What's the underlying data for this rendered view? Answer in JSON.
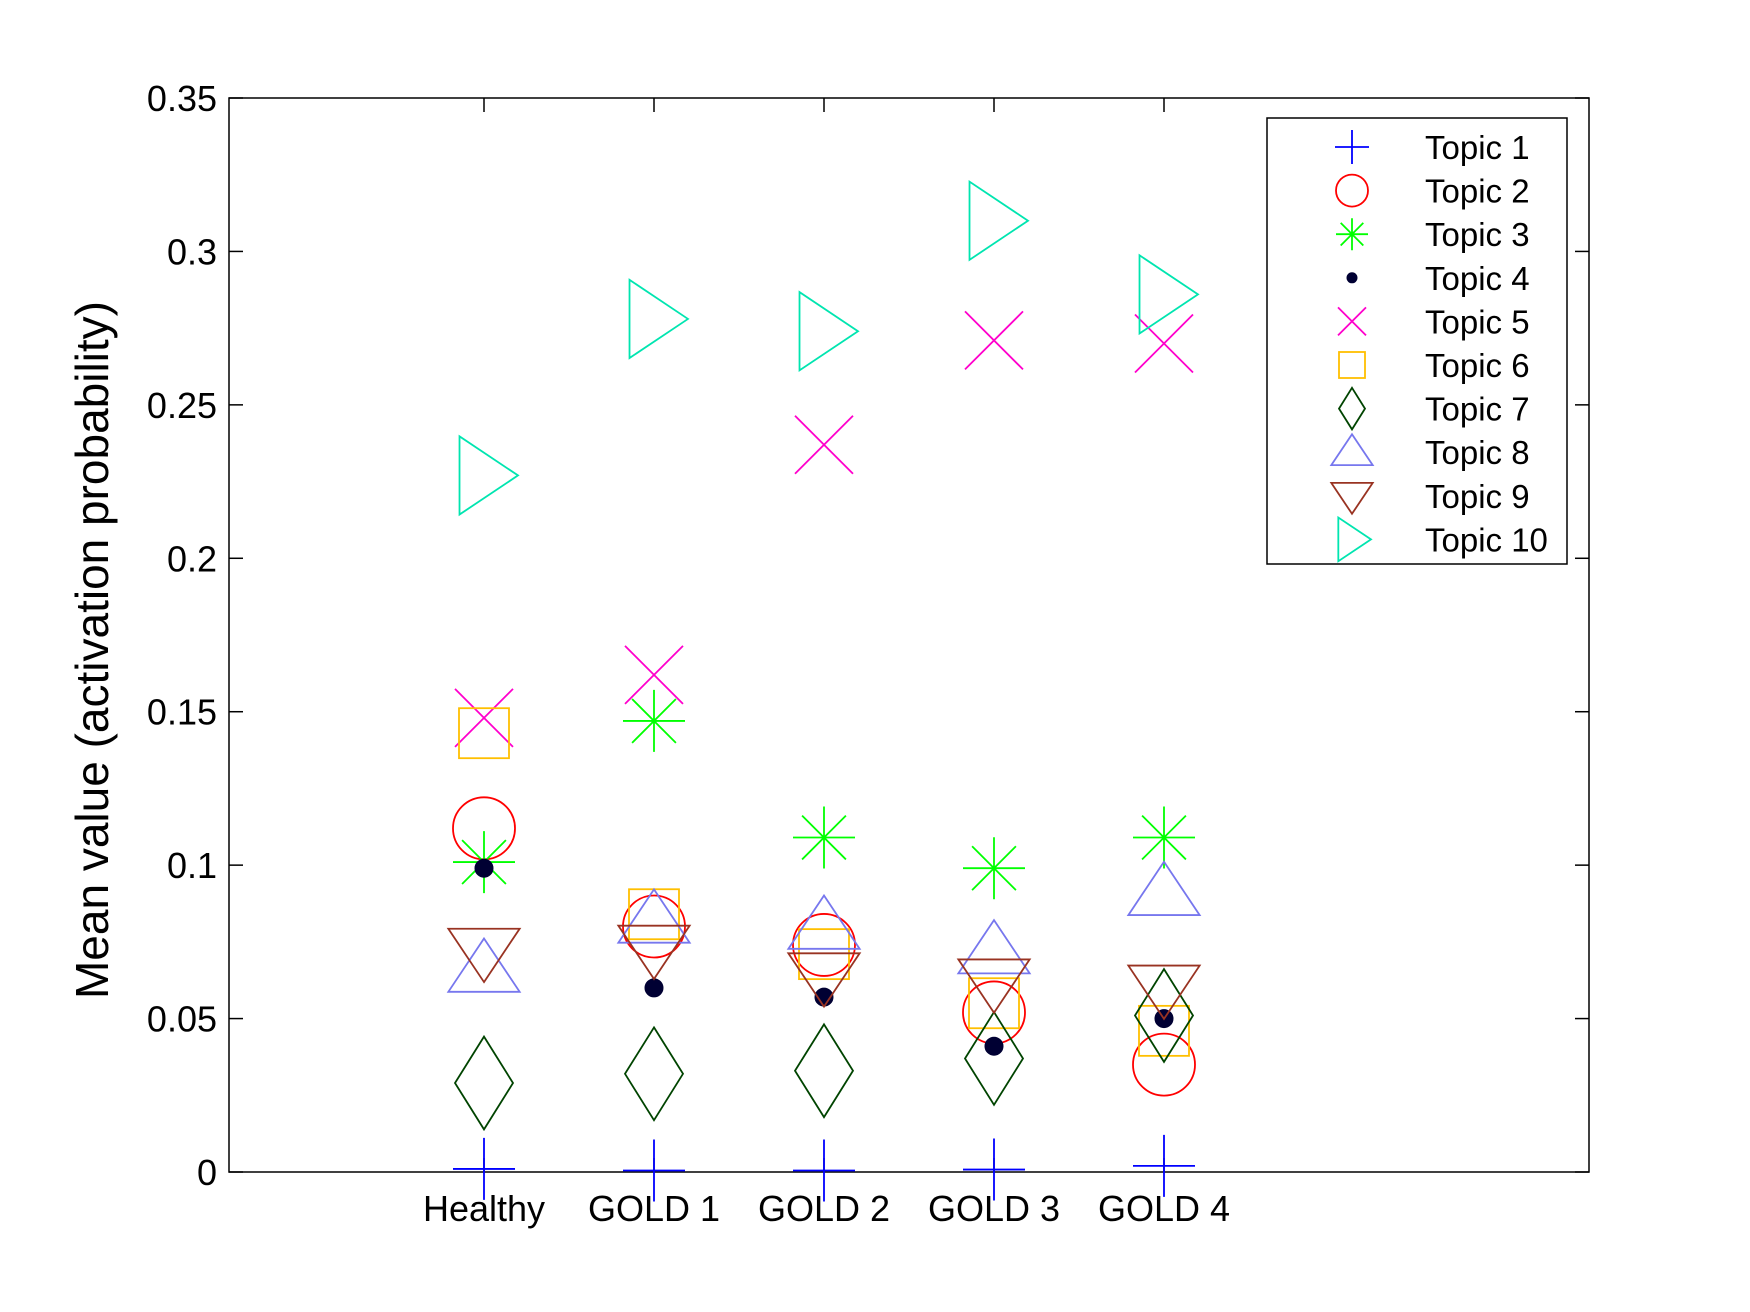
{
  "chart_data": {
    "type": "scatter",
    "title": "",
    "xlabel": "",
    "ylabel": "Mean value (activation probability)",
    "categories": [
      "Healthy",
      "GOLD 1",
      "GOLD 2",
      "GOLD 3",
      "GOLD 4"
    ],
    "ylim": [
      0,
      0.35
    ],
    "xlim": [
      -1.5,
      6.5
    ],
    "yticks": [
      "0",
      "0.05",
      "0.1",
      "0.15",
      "0.2",
      "0.25",
      "0.3",
      "0.35"
    ],
    "grid": false,
    "legend_position": "top-right",
    "series": [
      {
        "name": "Topic 1",
        "marker": "plus",
        "color": "#0000ff",
        "values": [
          0.001,
          0.0005,
          0.0005,
          0.0008,
          0.002
        ]
      },
      {
        "name": "Topic 2",
        "marker": "circle",
        "color": "#ff0000",
        "values": [
          0.112,
          0.08,
          0.074,
          0.052,
          0.035
        ]
      },
      {
        "name": "Topic 3",
        "marker": "asterisk",
        "color": "#00ff00",
        "values": [
          0.101,
          0.147,
          0.109,
          0.099,
          0.109
        ]
      },
      {
        "name": "Topic 4",
        "marker": "dot",
        "color": "#000033",
        "values": [
          0.099,
          0.06,
          0.057,
          0.041,
          0.05
        ]
      },
      {
        "name": "Topic 5",
        "marker": "x",
        "color": "#ff00cc",
        "values": [
          0.148,
          0.162,
          0.237,
          0.271,
          0.27
        ]
      },
      {
        "name": "Topic 6",
        "marker": "square",
        "color": "#ffbf00",
        "values": [
          0.143,
          0.084,
          0.071,
          0.055,
          0.046
        ]
      },
      {
        "name": "Topic 7",
        "marker": "diamond",
        "color": "#004400",
        "values": [
          0.029,
          0.032,
          0.033,
          0.037,
          0.051
        ]
      },
      {
        "name": "Topic 8",
        "marker": "triangle-up",
        "color": "#7777ee",
        "values": [
          0.066,
          0.082,
          0.08,
          0.072,
          0.091
        ]
      },
      {
        "name": "Topic 9",
        "marker": "triangle-down",
        "color": "#993322",
        "values": [
          0.072,
          0.073,
          0.064,
          0.062,
          0.06
        ]
      },
      {
        "name": "Topic 10",
        "marker": "triangle-right",
        "color": "#00e5b0",
        "values": [
          0.227,
          0.278,
          0.274,
          0.31,
          0.286
        ]
      }
    ]
  }
}
